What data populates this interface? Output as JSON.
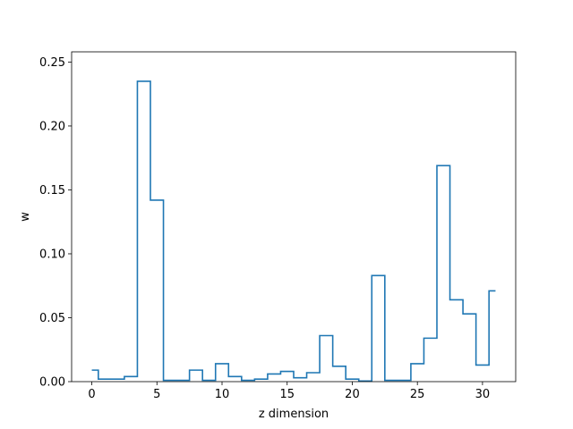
{
  "chart_data": {
    "type": "line",
    "style": "step",
    "title": "",
    "xlabel": "z dimension",
    "ylabel": "w",
    "xlim": [
      -1.55,
      32.55
    ],
    "ylim": [
      0,
      0.258
    ],
    "xticks": [
      0,
      5,
      10,
      15,
      20,
      25,
      30
    ],
    "xtick_labels": [
      "0",
      "5",
      "10",
      "15",
      "20",
      "25",
      "30"
    ],
    "yticks": [
      0.0,
      0.05,
      0.1,
      0.15,
      0.2,
      0.25
    ],
    "ytick_labels": [
      "0.00",
      "0.05",
      "0.10",
      "0.15",
      "0.20",
      "0.25"
    ],
    "grid": false,
    "series": [
      {
        "color": "#1f77b4",
        "x": [
          0,
          1,
          2,
          3,
          4,
          5,
          6,
          7,
          8,
          9,
          10,
          11,
          12,
          13,
          14,
          15,
          16,
          17,
          18,
          19,
          20,
          21,
          22,
          23,
          24,
          25,
          26,
          27,
          28,
          29,
          30,
          31
        ],
        "values": [
          0.009,
          0.002,
          0.002,
          0.004,
          0.235,
          0.142,
          0.001,
          0.001,
          0.009,
          0.001,
          0.014,
          0.004,
          0.001,
          0.002,
          0.006,
          0.008,
          0.003,
          0.007,
          0.036,
          0.012,
          0.002,
          0.0005,
          0.083,
          0.001,
          0.001,
          0.014,
          0.034,
          0.169,
          0.064,
          0.053,
          0.013,
          0.071
        ]
      }
    ]
  }
}
